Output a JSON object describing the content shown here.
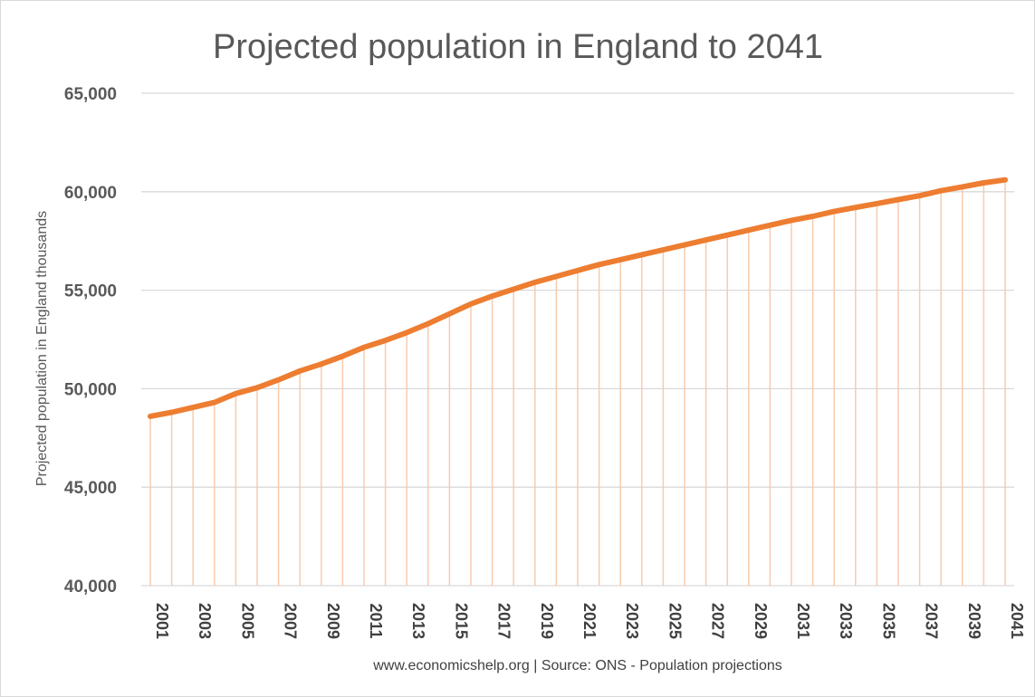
{
  "colors": {
    "series_line": "#ED7D31",
    "drop_lines": "#F8CBAD",
    "gridlines": "#D9D9D9"
  },
  "chart_data": {
    "type": "line",
    "title": "Projected population in England to 2041",
    "ylabel": "Projected population in England thousands",
    "xlabel": "",
    "source_note": "www.economicshelp.org | Source: ONS - Population projections",
    "ylim": [
      40000,
      65000
    ],
    "y_ticks": [
      "40,000",
      "45,000",
      "50,000",
      "55,000",
      "60,000",
      "65,000"
    ],
    "x": [
      2001,
      2002,
      2003,
      2004,
      2005,
      2006,
      2007,
      2008,
      2009,
      2010,
      2011,
      2012,
      2013,
      2014,
      2015,
      2016,
      2017,
      2018,
      2019,
      2020,
      2021,
      2022,
      2023,
      2024,
      2025,
      2026,
      2027,
      2028,
      2029,
      2030,
      2031,
      2032,
      2033,
      2034,
      2035,
      2036,
      2037,
      2038,
      2039,
      2040,
      2041
    ],
    "x_tick_labels": [
      "2001",
      "2003",
      "2005",
      "2007",
      "2009",
      "2011",
      "2013",
      "2015",
      "2017",
      "2019",
      "2021",
      "2023",
      "2025",
      "2027",
      "2029",
      "2031",
      "2033",
      "2035",
      "2037",
      "2039",
      "2041"
    ],
    "grid": true,
    "legend": "none",
    "drop_lines": true,
    "series": [
      {
        "values": [
          48600,
          48800,
          49050,
          49300,
          49750,
          50050,
          50450,
          50900,
          51250,
          51650,
          52100,
          52450,
          52850,
          53300,
          53800,
          54300,
          54700,
          55050,
          55400,
          55700,
          56000,
          56300,
          56550,
          56800,
          57050,
          57300,
          57550,
          57800,
          58050,
          58300,
          58550,
          58750,
          59000,
          59200,
          59400,
          59600,
          59800,
          60050,
          60250,
          60450,
          60600
        ]
      }
    ]
  }
}
